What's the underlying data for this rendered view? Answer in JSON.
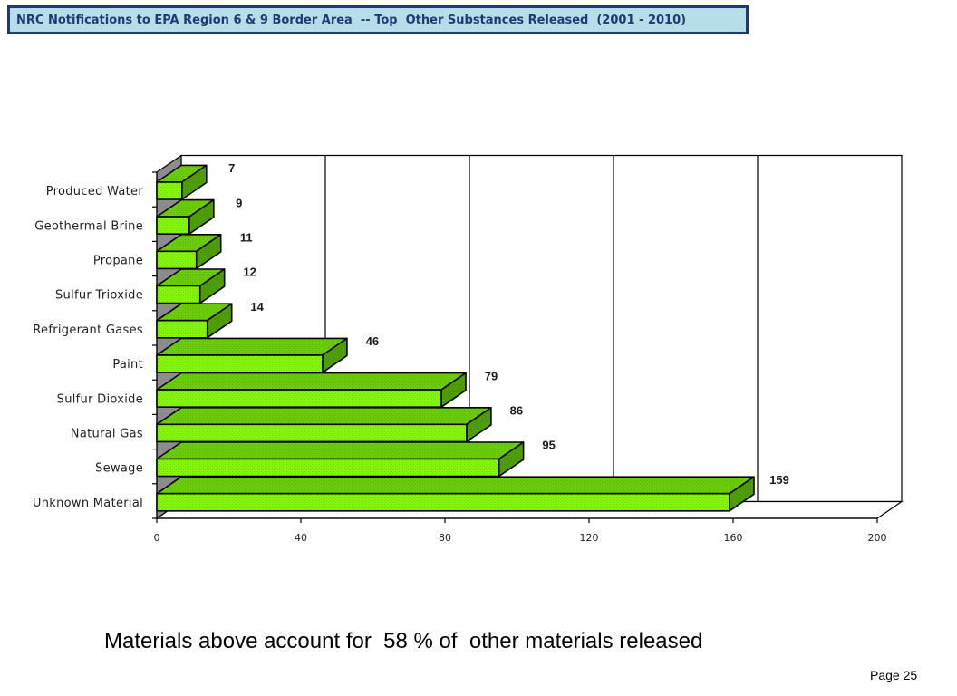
{
  "title": "NRC Notifications to EPA Region 6 & 9 Border Area  -- Top  Other Substances Released  (2001 - 2010)",
  "chart_data": {
    "type": "bar",
    "orientation": "horizontal",
    "three_d": true,
    "categories": [
      "Unknown Material",
      "Sewage",
      "Natural Gas",
      "Sulfur Dioxide",
      "Paint",
      "Refrigerant Gases",
      "Sulfur Trioxide",
      "Propane",
      "Geothermal Brine",
      "Produced Water"
    ],
    "values": [
      159,
      95,
      86,
      79,
      46,
      14,
      12,
      11,
      9,
      7
    ],
    "xticks": [
      0,
      40,
      80,
      120,
      160,
      200
    ],
    "xlim": [
      0,
      200
    ],
    "grid": true,
    "legend": "none"
  },
  "footnote": "Materials above account for  58 % of  other materials released",
  "page_label": "Page 25",
  "colors": {
    "title_background": "#b7dee8",
    "title_border": "#1f3a73",
    "title_text": "#1f3a73",
    "bar_front": "#85f50a",
    "bar_top": "#6acd08",
    "bar_side": "#4f9e06",
    "side_wall": "#8c8c8c",
    "back_wall": "#ffffff",
    "outline": "#000000"
  }
}
